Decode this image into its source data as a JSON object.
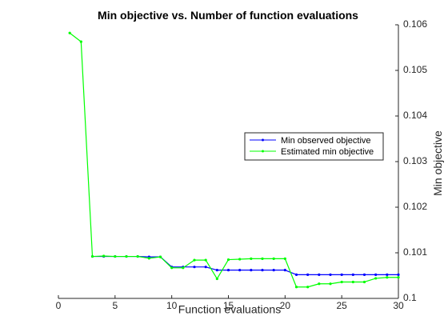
{
  "chart_data": {
    "type": "line",
    "title": "Min objective vs. Number of function evaluations",
    "xlabel": "Function evaluations",
    "ylabel": "Min objective",
    "xlim": [
      0,
      30
    ],
    "ylim": [
      0.1,
      0.106
    ],
    "x_ticks": [
      "0",
      "5",
      "10",
      "15",
      "20",
      "25",
      "30"
    ],
    "y_ticks": [
      "0.1",
      "0.101",
      "0.102",
      "0.103",
      "0.104",
      "0.105",
      "0.106"
    ],
    "y_axis_side": "right",
    "grid": false,
    "legend_position": "right",
    "series": [
      {
        "name": "Min observed objective",
        "color": "#0000ff",
        "x": [
          3,
          4,
          5,
          6,
          7,
          8,
          9,
          10,
          11,
          12,
          13,
          14,
          15,
          16,
          17,
          18,
          19,
          20,
          21,
          22,
          23,
          24,
          25,
          26,
          27,
          28,
          29,
          30
        ],
        "values": [
          0.10092,
          0.10092,
          0.10092,
          0.10092,
          0.10092,
          0.10091,
          0.10091,
          0.10069,
          0.10069,
          0.10069,
          0.10069,
          0.10062,
          0.10062,
          0.10062,
          0.10062,
          0.10062,
          0.10062,
          0.10062,
          0.10052,
          0.10052,
          0.10052,
          0.10052,
          0.10052,
          0.10052,
          0.10052,
          0.10052,
          0.10052,
          0.10052
        ]
      },
      {
        "name": "Estimated min objective",
        "color": "#00ff00",
        "x": [
          1,
          2,
          3,
          4,
          5,
          6,
          7,
          8,
          9,
          10,
          11,
          12,
          13,
          14,
          15,
          16,
          17,
          18,
          19,
          20,
          21,
          22,
          23,
          24,
          25,
          26,
          27,
          28,
          29,
          30
        ],
        "values": [
          0.10582,
          0.10563,
          0.10092,
          0.10093,
          0.10092,
          0.10092,
          0.10092,
          0.10088,
          0.10091,
          0.10067,
          0.10067,
          0.10084,
          0.10084,
          0.10043,
          0.10085,
          0.10086,
          0.10087,
          0.10087,
          0.10087,
          0.10087,
          0.10025,
          0.10025,
          0.10032,
          0.10032,
          0.10036,
          0.10036,
          0.10036,
          0.10044,
          0.10046,
          0.10046
        ]
      }
    ]
  }
}
